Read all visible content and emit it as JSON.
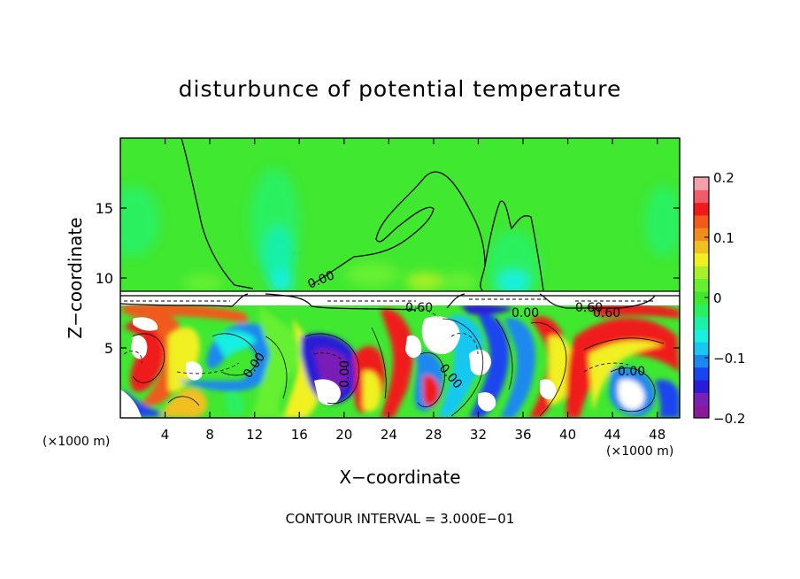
{
  "chart_data": {
    "type": "heatmap",
    "title": "disturbunce of potential temperature",
    "xlabel": "X−coordinate",
    "ylabel": "Z−coordinate",
    "x_unit_left": "(×1000 m)",
    "x_unit_right": "(×1000 m)",
    "xlim": [
      0,
      50
    ],
    "ylim": [
      0,
      20
    ],
    "x_ticks": [
      {
        "v": 4,
        "label": "4"
      },
      {
        "v": 8,
        "label": "8"
      },
      {
        "v": 12,
        "label": "12"
      },
      {
        "v": 16,
        "label": "16"
      },
      {
        "v": 20,
        "label": "20"
      },
      {
        "v": 24,
        "label": "24"
      },
      {
        "v": 28,
        "label": "28"
      },
      {
        "v": 32,
        "label": "32"
      },
      {
        "v": 36,
        "label": "36"
      },
      {
        "v": 40,
        "label": "40"
      },
      {
        "v": 44,
        "label": "44"
      },
      {
        "v": 48,
        "label": "48"
      }
    ],
    "y_ticks": [
      {
        "v": 5,
        "label": "5"
      },
      {
        "v": 10,
        "label": "10"
      },
      {
        "v": 15,
        "label": "15"
      }
    ],
    "colorbar": {
      "min": -0.2,
      "max": 0.2,
      "ticks": [
        {
          "v": 0.2,
          "label": "0.2"
        },
        {
          "v": 0.1,
          "label": "0.1"
        },
        {
          "v": 0,
          "label": "0"
        },
        {
          "v": -0.1,
          "label": "−0.1"
        },
        {
          "v": -0.2,
          "label": "−0.2"
        }
      ],
      "colors": [
        "#8b1a9a",
        "#7a1fb8",
        "#2a1bd6",
        "#1a44f0",
        "#1a88f0",
        "#19c8f0",
        "#19f0e0",
        "#19f0a8",
        "#2af060",
        "#40e830",
        "#66f030",
        "#a8f028",
        "#f0f020",
        "#f0c020",
        "#f08c1c",
        "#f05a1a",
        "#f01a1a",
        "#f05a6a",
        "#f4a0a8"
      ]
    },
    "contour_labels": [
      "0.00",
      "0.60",
      "0.00",
      "0.60",
      "0.60",
      "0.00",
      "0.00",
      "0.00",
      "0.00"
    ],
    "footer": "CONTOUR INTERVAL = 3.000E−01"
  }
}
